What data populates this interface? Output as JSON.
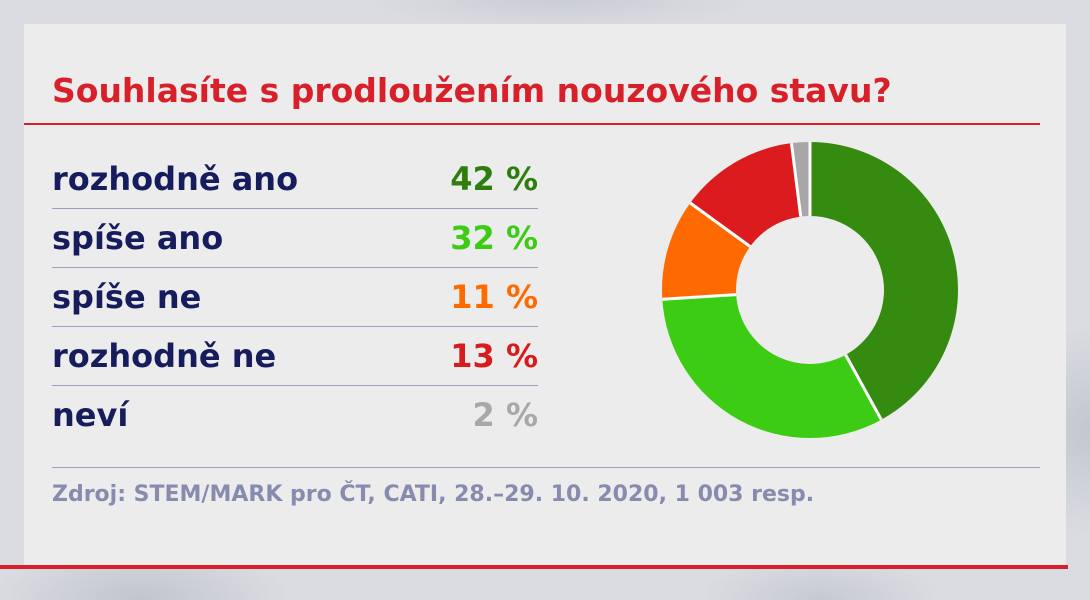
{
  "chart_data": {
    "type": "pie",
    "donut": true,
    "title": "Souhlasíte s prodloužením nouzového stavu?",
    "categories": [
      "rozhodně ano",
      "spíše ano",
      "spíše ne",
      "rozhodně ne",
      "neví"
    ],
    "values": [
      42,
      32,
      11,
      13,
      2
    ],
    "value_labels": [
      "42 %",
      "32 %",
      "11 %",
      "13 %",
      "2 %"
    ],
    "colors": [
      "#358b0f",
      "#3dcc14",
      "#ff6a00",
      "#dc1b1f",
      "#a7a7a7"
    ],
    "label_colors": [
      "#2e7e0d",
      "#3dcc14",
      "#ff6a00",
      "#d81b1f",
      "#a8a8a8"
    ],
    "legend_placement": "left"
  },
  "source": "Zdroj: STEM/MARK pro ČT, CATI, 28.–29. 10. 2020, 1 003 resp.",
  "colors": {
    "title": "#d7202a",
    "rule": "#d7202a",
    "label": "#171c5c",
    "divider": "#9ba0bf",
    "source": "#878cae",
    "panel": "#ececec",
    "background": "#dadce1",
    "bar": "#d7202a"
  }
}
